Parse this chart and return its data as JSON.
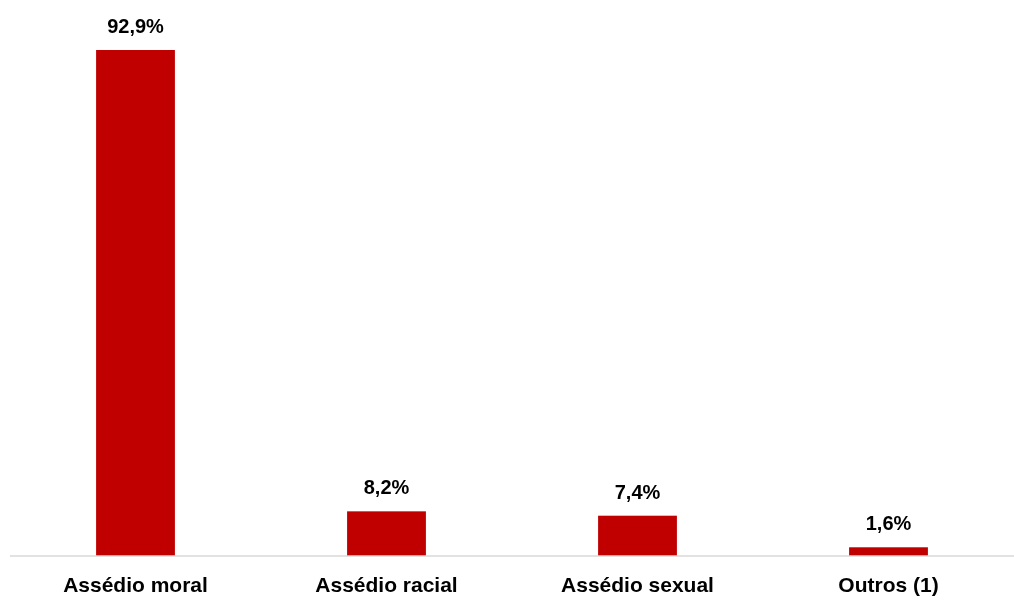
{
  "chart_data": {
    "type": "bar",
    "categories": [
      "Assédio moral",
      "Assédio racial",
      "Assédio sexual",
      "Outros (1)"
    ],
    "values": [
      92.9,
      8.2,
      7.4,
      1.6
    ],
    "value_labels": [
      "92,9%",
      "8,2%",
      "7,4%",
      "1,6%"
    ],
    "color": "#c00000",
    "tick_labels": "x"
  }
}
